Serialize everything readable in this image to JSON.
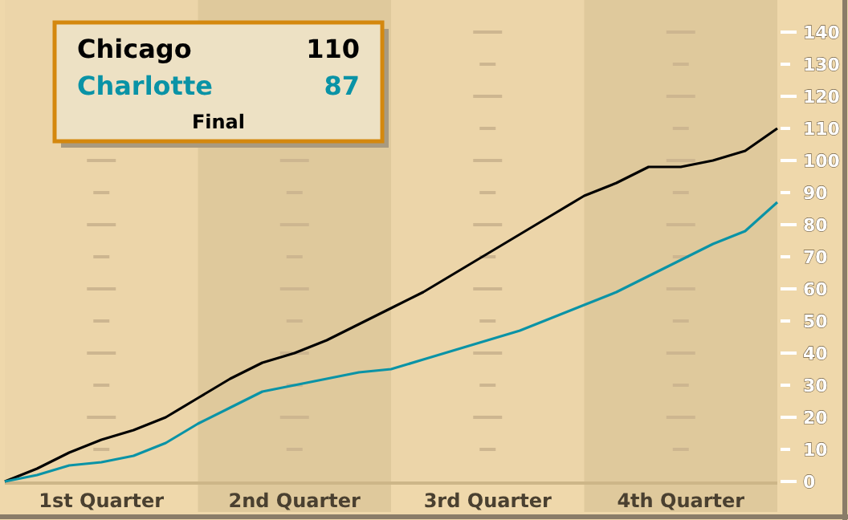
{
  "chart_data": {
    "type": "line",
    "ylim": [
      0,
      140
    ],
    "categories": [
      null,
      null,
      null,
      "1st Quarter",
      null,
      null,
      null,
      null,
      null,
      "2nd Quarter",
      null,
      null,
      null,
      null,
      null,
      "3rd Quarter",
      null,
      null,
      null,
      null,
      null,
      "4th Quarter",
      null,
      null,
      null
    ],
    "yticks": [
      0,
      10,
      20,
      30,
      40,
      50,
      60,
      70,
      80,
      90,
      100,
      110,
      120,
      130,
      140
    ],
    "legend": "top left",
    "marker": "none",
    "line_style": "solid",
    "annotations": [
      "110",
      "87",
      "Final"
    ],
    "series": [
      {
        "name": "Chicago",
        "color": "#000000",
        "values": [
          0,
          4,
          9,
          13,
          16,
          20,
          26,
          32,
          37,
          40,
          44,
          49,
          54,
          59,
          65,
          71,
          77,
          83,
          89,
          93,
          98,
          98,
          100,
          103,
          110
        ]
      },
      {
        "name": "Charlotte",
        "color": "#0a93a6",
        "values": [
          0,
          2,
          5,
          6,
          8,
          12,
          18,
          23,
          28,
          30,
          32,
          34,
          35,
          38,
          41,
          44,
          47,
          51,
          55,
          59,
          64,
          69,
          74,
          78,
          87
        ]
      }
    ]
  }
}
